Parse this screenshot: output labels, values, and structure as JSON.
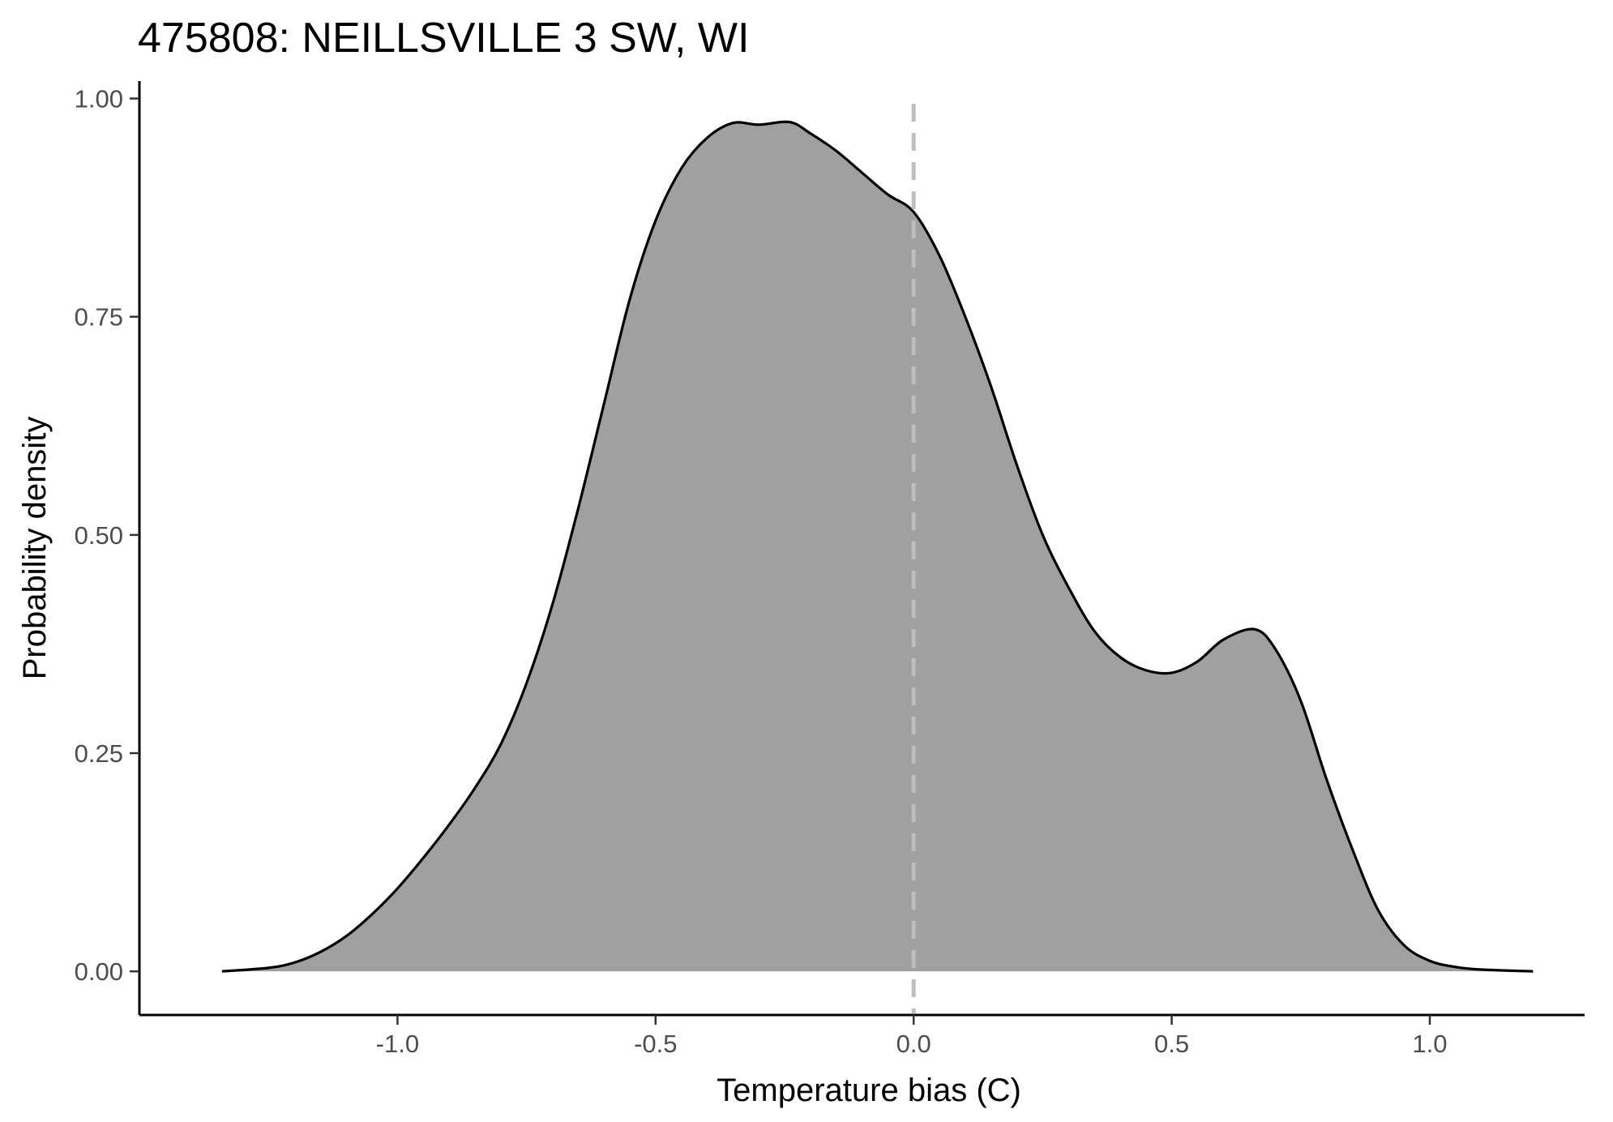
{
  "chart_data": {
    "type": "area",
    "title": "475808: NEILLSVILLE 3 SW, WI",
    "xlabel": "Temperature bias (C)",
    "ylabel": "Probability density",
    "xlim": [
      -1.5,
      1.3
    ],
    "ylim": [
      -0.05,
      1.02
    ],
    "x_ticks": [
      -1.0,
      -0.5,
      0.0,
      0.5,
      1.0
    ],
    "x_tick_labels": [
      "-1.0",
      "-0.5",
      "0.0",
      "0.5",
      "1.0"
    ],
    "y_ticks": [
      0.0,
      0.25,
      0.5,
      0.75,
      1.0
    ],
    "y_tick_labels": [
      "0.00",
      "0.25",
      "0.50",
      "0.75",
      "1.00"
    ],
    "grid": false,
    "reference_line": {
      "x": 0.0,
      "style": "dashed",
      "color": "#bebebe"
    },
    "fill_color": "#a0a0a0",
    "line_color": "#000000",
    "series": [
      {
        "x": [
          -1.34,
          -1.25,
          -1.2,
          -1.15,
          -1.1,
          -1.05,
          -1.0,
          -0.95,
          -0.9,
          -0.85,
          -0.8,
          -0.75,
          -0.7,
          -0.65,
          -0.6,
          -0.55,
          -0.5,
          -0.45,
          -0.4,
          -0.35,
          -0.3,
          -0.24,
          -0.2,
          -0.15,
          -0.1,
          -0.05,
          0.0,
          0.05,
          0.1,
          0.15,
          0.2,
          0.25,
          0.3,
          0.35,
          0.4,
          0.45,
          0.5,
          0.55,
          0.6,
          0.66,
          0.7,
          0.75,
          0.8,
          0.85,
          0.9,
          0.95,
          1.0,
          1.05,
          1.1,
          1.2
        ],
        "y": [
          0.0,
          0.004,
          0.01,
          0.022,
          0.04,
          0.065,
          0.095,
          0.13,
          0.168,
          0.21,
          0.26,
          0.33,
          0.42,
          0.53,
          0.65,
          0.77,
          0.86,
          0.92,
          0.955,
          0.972,
          0.97,
          0.973,
          0.96,
          0.94,
          0.915,
          0.89,
          0.87,
          0.82,
          0.75,
          0.67,
          0.58,
          0.5,
          0.44,
          0.39,
          0.36,
          0.345,
          0.342,
          0.355,
          0.38,
          0.392,
          0.37,
          0.31,
          0.22,
          0.14,
          0.07,
          0.03,
          0.012,
          0.005,
          0.002,
          0.0
        ]
      }
    ]
  }
}
